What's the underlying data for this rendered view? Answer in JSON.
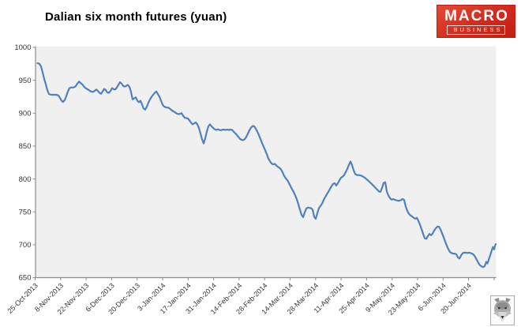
{
  "title": "Dalian six month futures (yuan)",
  "logo": {
    "line1": "MACRO",
    "line2": "BUSINESS",
    "bg": "#d02b1e",
    "text_color": "#ffffff"
  },
  "icons": {
    "footer": "wolf-face-icon"
  },
  "chart_data": {
    "type": "line",
    "title": "Dalian six month futures (yuan)",
    "xlabel": "",
    "ylabel": "",
    "ylim": [
      650,
      1000
    ],
    "yticks": [
      1000,
      950,
      900,
      850,
      800,
      750,
      700,
      650
    ],
    "xtick_labels": [
      "25-Oct-2013",
      "8-Nov-2013",
      "22-Nov-2013",
      "6-Dec-2013",
      "20-Dec-2013",
      "3-Jan-2014",
      "17-Jan-2014",
      "31-Jan-2014",
      "14-Feb-2014",
      "28-Feb-2014",
      "14-Mar-2014",
      "28-Mar-2014",
      "11-Apr-2014",
      "25-Apr-2014",
      "9-May-2014",
      "23-May-2014",
      "6-Jun-2014",
      "20-Jun-2014"
    ],
    "grid": false,
    "legend_position": "none",
    "plot_bg": "#f0f0f0",
    "axis_color": "#8c8c8c",
    "label_color": "#333333",
    "series": [
      {
        "name": "Dalian six month futures",
        "color": "#4f81bd",
        "points": [
          [
            47.5,
            976
          ],
          [
            50,
            975
          ],
          [
            52,
            971
          ],
          [
            54,
            962
          ],
          [
            56,
            952
          ],
          [
            58,
            944
          ],
          [
            60,
            935
          ],
          [
            62,
            929
          ],
          [
            65,
            928
          ],
          [
            68,
            928
          ],
          [
            71,
            928
          ],
          [
            74,
            927
          ],
          [
            76,
            923
          ],
          [
            78,
            919
          ],
          [
            80,
            917
          ],
          [
            82,
            920
          ],
          [
            84,
            926
          ],
          [
            86,
            933
          ],
          [
            88,
            938
          ],
          [
            90,
            939
          ],
          [
            92,
            939
          ],
          [
            94,
            939.5
          ],
          [
            96,
            941
          ],
          [
            98,
            945
          ],
          [
            100,
            948
          ],
          [
            102,
            946
          ],
          [
            104,
            944
          ],
          [
            106,
            941
          ],
          [
            108,
            938.5
          ],
          [
            110,
            937
          ],
          [
            112,
            935.5
          ],
          [
            114,
            934
          ],
          [
            116,
            932.5
          ],
          [
            118,
            932.5
          ],
          [
            120,
            934
          ],
          [
            122,
            936
          ],
          [
            124,
            934
          ],
          [
            126,
            931
          ],
          [
            128,
            929.5
          ],
          [
            130,
            933
          ],
          [
            132,
            937
          ],
          [
            134,
            935
          ],
          [
            136,
            931.5
          ],
          [
            138,
            931
          ],
          [
            140,
            934
          ],
          [
            142,
            938
          ],
          [
            144,
            936.5
          ],
          [
            146,
            936
          ],
          [
            148,
            939
          ],
          [
            150,
            943
          ],
          [
            152,
            947
          ],
          [
            154,
            945
          ],
          [
            156,
            941.5
          ],
          [
            158,
            940.5
          ],
          [
            160,
            941.5
          ],
          [
            162,
            943
          ],
          [
            164,
            940
          ],
          [
            166,
            932
          ],
          [
            168,
            921
          ],
          [
            170,
            922.5
          ],
          [
            172,
            924
          ],
          [
            174,
            919
          ],
          [
            176,
            916.5
          ],
          [
            178,
            919
          ],
          [
            180,
            913
          ],
          [
            182,
            907
          ],
          [
            184,
            905.5
          ],
          [
            186,
            910
          ],
          [
            188,
            916
          ],
          [
            190,
            921
          ],
          [
            192,
            925
          ],
          [
            194,
            928
          ],
          [
            196,
            931
          ],
          [
            198,
            933
          ],
          [
            200,
            929
          ],
          [
            202,
            925
          ],
          [
            204,
            919
          ],
          [
            206,
            913
          ],
          [
            208,
            910
          ],
          [
            210,
            909
          ],
          [
            212,
            908.5
          ],
          [
            214,
            908
          ],
          [
            216,
            906
          ],
          [
            218,
            904
          ],
          [
            220,
            902.5
          ],
          [
            222,
            901
          ],
          [
            224,
            899.5
          ],
          [
            226,
            898.5
          ],
          [
            228,
            899
          ],
          [
            230,
            900
          ],
          [
            232,
            896
          ],
          [
            234,
            893
          ],
          [
            236,
            892.5
          ],
          [
            238,
            892
          ],
          [
            240,
            889
          ],
          [
            242,
            885.5
          ],
          [
            244,
            883
          ],
          [
            246,
            884.5
          ],
          [
            248,
            886
          ],
          [
            250,
            883
          ],
          [
            252,
            877.5
          ],
          [
            254,
            869
          ],
          [
            256,
            860
          ],
          [
            258,
            854
          ],
          [
            260,
            862
          ],
          [
            262,
            872
          ],
          [
            264,
            880
          ],
          [
            266,
            883
          ],
          [
            268,
            880
          ],
          [
            270,
            877.5
          ],
          [
            272,
            875.5
          ],
          [
            274,
            874.5
          ],
          [
            276,
            875.5
          ],
          [
            278,
            874.5
          ],
          [
            280,
            874
          ],
          [
            282,
            875
          ],
          [
            284,
            875
          ],
          [
            286,
            874.5
          ],
          [
            288,
            875
          ],
          [
            290,
            874.5
          ],
          [
            292,
            875
          ],
          [
            294,
            874.5
          ],
          [
            296,
            872
          ],
          [
            298,
            869.5
          ],
          [
            300,
            867
          ],
          [
            302,
            864
          ],
          [
            304,
            861
          ],
          [
            306,
            859.5
          ],
          [
            308,
            859
          ],
          [
            310,
            860.5
          ],
          [
            312,
            864
          ],
          [
            314,
            869
          ],
          [
            316,
            874
          ],
          [
            318,
            878
          ],
          [
            320,
            880.5
          ],
          [
            322,
            880
          ],
          [
            324,
            876.5
          ],
          [
            326,
            872
          ],
          [
            328,
            866.5
          ],
          [
            330,
            860.5
          ],
          [
            332,
            854.5
          ],
          [
            334,
            849
          ],
          [
            336,
            843.5
          ],
          [
            338,
            837.5
          ],
          [
            340,
            831
          ],
          [
            342,
            827
          ],
          [
            344,
            823.5
          ],
          [
            346,
            822
          ],
          [
            348,
            823
          ],
          [
            350,
            820.5
          ],
          [
            352,
            818.5
          ],
          [
            354,
            817
          ],
          [
            356,
            814.5
          ],
          [
            358,
            810
          ],
          [
            360,
            804.5
          ],
          [
            362,
            801
          ],
          [
            364,
            798
          ],
          [
            366,
            794
          ],
          [
            368,
            789
          ],
          [
            370,
            784.5
          ],
          [
            372,
            780
          ],
          [
            374,
            775
          ],
          [
            376,
            769
          ],
          [
            378,
            761.5
          ],
          [
            380,
            753
          ],
          [
            382,
            745.5
          ],
          [
            384,
            742
          ],
          [
            386,
            749
          ],
          [
            388,
            755
          ],
          [
            390,
            756.5
          ],
          [
            392,
            756
          ],
          [
            394,
            755.5
          ],
          [
            396,
            753.5
          ],
          [
            398,
            742.5
          ],
          [
            400,
            739.5
          ],
          [
            402,
            748
          ],
          [
            404,
            755.5
          ],
          [
            406,
            759
          ],
          [
            408,
            762.5
          ],
          [
            410,
            768
          ],
          [
            412,
            772.5
          ],
          [
            414,
            776.5
          ],
          [
            416,
            780.5
          ],
          [
            418,
            785
          ],
          [
            420,
            789
          ],
          [
            422,
            792.5
          ],
          [
            424,
            793.5
          ],
          [
            426,
            790
          ],
          [
            428,
            793.5
          ],
          [
            430,
            798
          ],
          [
            432,
            802
          ],
          [
            434,
            803.5
          ],
          [
            436,
            806
          ],
          [
            438,
            810.5
          ],
          [
            440,
            815.5
          ],
          [
            442,
            821.5
          ],
          [
            444,
            826.5
          ],
          [
            446,
            821
          ],
          [
            448,
            813
          ],
          [
            450,
            807.5
          ],
          [
            452,
            806
          ],
          [
            454,
            806
          ],
          [
            456,
            805.5
          ],
          [
            458,
            805
          ],
          [
            460,
            803.5
          ],
          [
            462,
            802
          ],
          [
            464,
            800
          ],
          [
            466,
            798
          ],
          [
            468,
            795.5
          ],
          [
            470,
            793.5
          ],
          [
            472,
            791
          ],
          [
            474,
            788.5
          ],
          [
            476,
            786
          ],
          [
            478,
            783.5
          ],
          [
            480,
            781
          ],
          [
            482,
            780.5
          ],
          [
            484,
            786.5
          ],
          [
            486,
            794
          ],
          [
            488,
            795
          ],
          [
            490,
            781
          ],
          [
            492,
            775
          ],
          [
            494,
            771
          ],
          [
            496,
            768.5
          ],
          [
            498,
            769.5
          ],
          [
            500,
            768.5
          ],
          [
            502,
            767.5
          ],
          [
            504,
            767
          ],
          [
            506,
            767
          ],
          [
            508,
            768
          ],
          [
            510,
            769.5
          ],
          [
            512,
            768
          ],
          [
            514,
            758
          ],
          [
            516,
            751.5
          ],
          [
            518,
            747
          ],
          [
            520,
            744.5
          ],
          [
            522,
            743
          ],
          [
            524,
            741
          ],
          [
            526,
            739.5
          ],
          [
            528,
            741
          ],
          [
            530,
            736.5
          ],
          [
            532,
            730.5
          ],
          [
            534,
            724
          ],
          [
            536,
            716.5
          ],
          [
            538,
            710
          ],
          [
            540,
            709
          ],
          [
            542,
            713
          ],
          [
            544,
            716.5
          ],
          [
            546,
            714.5
          ],
          [
            548,
            717
          ],
          [
            550,
            721.5
          ],
          [
            552,
            725
          ],
          [
            554,
            727.5
          ],
          [
            556,
            727.5
          ],
          [
            558,
            723.5
          ],
          [
            560,
            717.5
          ],
          [
            562,
            711.5
          ],
          [
            564,
            704.5
          ],
          [
            566,
            698.5
          ],
          [
            568,
            693
          ],
          [
            570,
            689
          ],
          [
            572,
            687.5
          ],
          [
            574,
            686.5
          ],
          [
            576,
            686.5
          ],
          [
            578,
            685.5
          ],
          [
            580,
            681
          ],
          [
            582,
            679
          ],
          [
            584,
            683.5
          ],
          [
            586,
            687
          ],
          [
            588,
            688
          ],
          [
            590,
            688
          ],
          [
            592,
            687.5
          ],
          [
            594,
            688
          ],
          [
            596,
            687.5
          ],
          [
            598,
            686.5
          ],
          [
            600,
            685
          ],
          [
            602,
            681.5
          ],
          [
            604,
            677
          ],
          [
            606,
            672.5
          ],
          [
            608,
            669
          ],
          [
            610,
            667
          ],
          [
            612,
            666
          ],
          [
            614,
            667.5
          ],
          [
            616,
            674
          ],
          [
            617.5,
            671.5
          ],
          [
            619,
            677
          ],
          [
            621,
            684
          ],
          [
            623,
            691.5
          ],
          [
            624.5,
            696.5
          ],
          [
            626,
            693
          ],
          [
            627,
            698
          ],
          [
            628,
            701
          ]
        ]
      }
    ]
  }
}
